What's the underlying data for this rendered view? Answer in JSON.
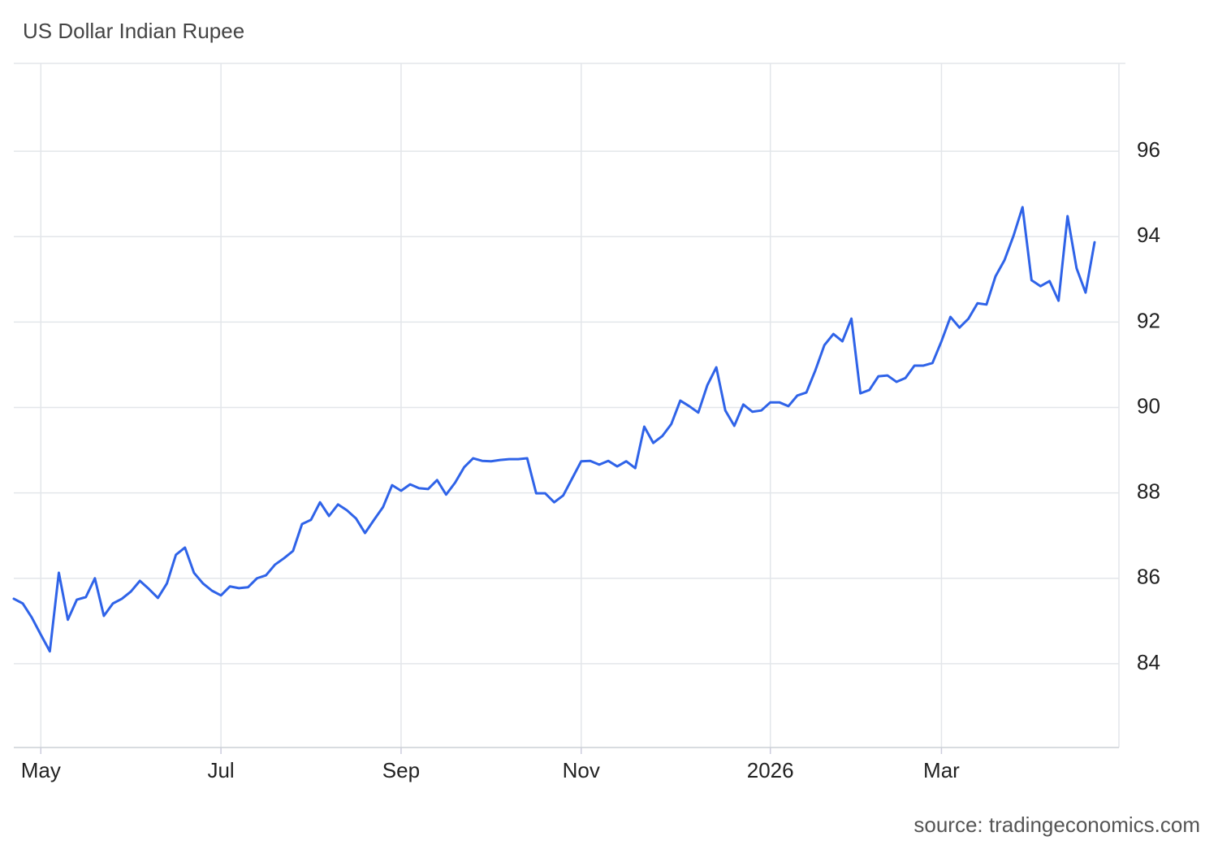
{
  "chart_data": {
    "type": "line",
    "title": "US Dollar Indian Rupee",
    "source": "source: tradingeconomics.com",
    "categories": [
      null,
      null,
      null,
      "May",
      null,
      null,
      null,
      null,
      null,
      null,
      null,
      null,
      null,
      null,
      null,
      null,
      null,
      null,
      null,
      null,
      null,
      null,
      null,
      "Jul",
      null,
      null,
      null,
      null,
      null,
      null,
      null,
      null,
      null,
      null,
      null,
      null,
      null,
      null,
      null,
      null,
      null,
      null,
      null,
      "Sep",
      null,
      null,
      null,
      null,
      null,
      null,
      null,
      null,
      null,
      null,
      null,
      null,
      null,
      null,
      null,
      null,
      null,
      null,
      null,
      "Nov",
      null,
      null,
      null,
      null,
      null,
      null,
      null,
      null,
      null,
      null,
      null,
      null,
      null,
      null,
      null,
      null,
      null,
      null,
      null,
      null,
      "2026",
      null,
      null,
      null,
      null,
      null,
      null,
      null,
      null,
      null,
      null,
      null,
      null,
      null,
      null,
      null,
      null,
      null,
      null,
      "Mar",
      null,
      null,
      null,
      null,
      null,
      null,
      null,
      null,
      null,
      null,
      null,
      null,
      null,
      null,
      null,
      null,
      null
    ],
    "values": [
      85.52,
      85.41,
      85.08,
      84.68,
      84.29,
      86.13,
      85.03,
      85.5,
      85.56,
      86.0,
      85.12,
      85.41,
      85.52,
      85.69,
      85.94,
      85.75,
      85.54,
      85.88,
      86.55,
      86.72,
      86.13,
      85.88,
      85.71,
      85.6,
      85.81,
      85.77,
      85.79,
      86.0,
      86.07,
      86.32,
      86.47,
      86.64,
      87.27,
      87.37,
      87.78,
      87.46,
      87.73,
      87.59,
      87.4,
      87.06,
      87.37,
      87.67,
      88.18,
      88.05,
      88.2,
      88.11,
      88.09,
      88.3,
      87.96,
      88.24,
      88.6,
      88.81,
      88.75,
      88.74,
      88.77,
      88.79,
      88.79,
      88.81,
      87.99,
      87.99,
      87.78,
      87.94,
      88.34,
      88.74,
      88.75,
      88.66,
      88.75,
      88.62,
      88.74,
      88.58,
      89.55,
      89.17,
      89.33,
      89.61,
      90.16,
      90.03,
      89.88,
      90.52,
      90.94,
      89.93,
      89.57,
      90.07,
      89.9,
      89.93,
      90.12,
      90.12,
      90.03,
      90.28,
      90.35,
      90.87,
      91.46,
      91.72,
      91.55,
      92.08,
      90.33,
      90.41,
      90.73,
      90.75,
      90.6,
      90.69,
      90.98,
      90.98,
      91.04,
      91.55,
      92.12,
      91.87,
      92.08,
      92.44,
      92.41,
      93.07,
      93.45,
      94.02,
      94.69,
      92.98,
      92.84,
      92.96,
      92.5,
      94.48,
      93.26,
      92.69,
      93.87
    ],
    "color": "#2f63e8",
    "ylim": [
      82,
      98
    ],
    "yticks": [
      84,
      86,
      88,
      90,
      92,
      94,
      96
    ],
    "grid": true
  }
}
